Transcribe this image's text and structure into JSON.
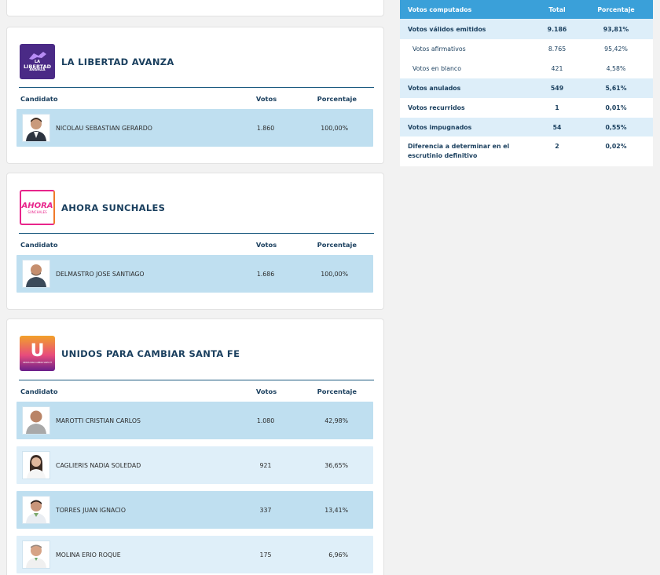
{
  "columns": {
    "candidate": "Candidato",
    "votes": "Votos",
    "percent": "Porcentaje"
  },
  "parties": [
    {
      "name": "LA LIBERTAD AVANZA",
      "logo_text": [
        "LA",
        "LIBERTAD",
        "AVANZA"
      ],
      "logo_color": "#4a2a86",
      "candidates": [
        {
          "name": "NICOLAU SEBASTIAN GERARDO",
          "votes": "1.860",
          "percent": "100,00%"
        }
      ]
    },
    {
      "name": "AHORA SUNCHALES",
      "logo_text": [
        "AHORA",
        "SUNCHALES"
      ],
      "logo_color": "#e8258b",
      "candidates": [
        {
          "name": "DELMASTRO JOSE SANTIAGO",
          "votes": "1.686",
          "percent": "100,00%"
        }
      ]
    },
    {
      "name": "UNIDOS PARA CAMBIAR SANTA FE",
      "logo_text": [
        "U",
        "UNIDOS PARA CAMBIAR SANTA FE"
      ],
      "logo_color": "#6a1f8a",
      "candidates": [
        {
          "name": "MAROTTI CRISTIAN CARLOS",
          "votes": "1.080",
          "percent": "42,98%"
        },
        {
          "name": "CAGLIERIS NADIA SOLEDAD",
          "votes": "921",
          "percent": "36,65%"
        },
        {
          "name": "TORRES JUAN IGNACIO",
          "votes": "337",
          "percent": "13,41%"
        },
        {
          "name": "MOLINA ERIO ROQUE",
          "votes": "175",
          "percent": "6,96%"
        }
      ]
    }
  ],
  "summary": {
    "headers": {
      "label": "Votos computados",
      "total": "Total",
      "percent": "Porcentaje"
    },
    "rows": [
      {
        "label": "Votos válidos emitidos",
        "total": "9.186",
        "percent": "93,81%"
      },
      {
        "label": "Votos afirmativos",
        "total": "8.765",
        "percent": "95,42%"
      },
      {
        "label": "Votos en blanco",
        "total": "421",
        "percent": "4,58%"
      },
      {
        "label": "Votos anulados",
        "total": "549",
        "percent": "5,61%"
      },
      {
        "label": "Votos recurridos",
        "total": "1",
        "percent": "0,01%"
      },
      {
        "label": "Votos impugnados",
        "total": "54",
        "percent": "0,55%"
      },
      {
        "label": "Diferencia a determinar en el escrutinio definitivo",
        "total": "2",
        "percent": "0,02%"
      }
    ]
  },
  "colors": {
    "accent": "#3aa0d9",
    "row_dark": "#bfdff0",
    "row_light": "#dfeff9",
    "title": "#1a3f5e"
  }
}
